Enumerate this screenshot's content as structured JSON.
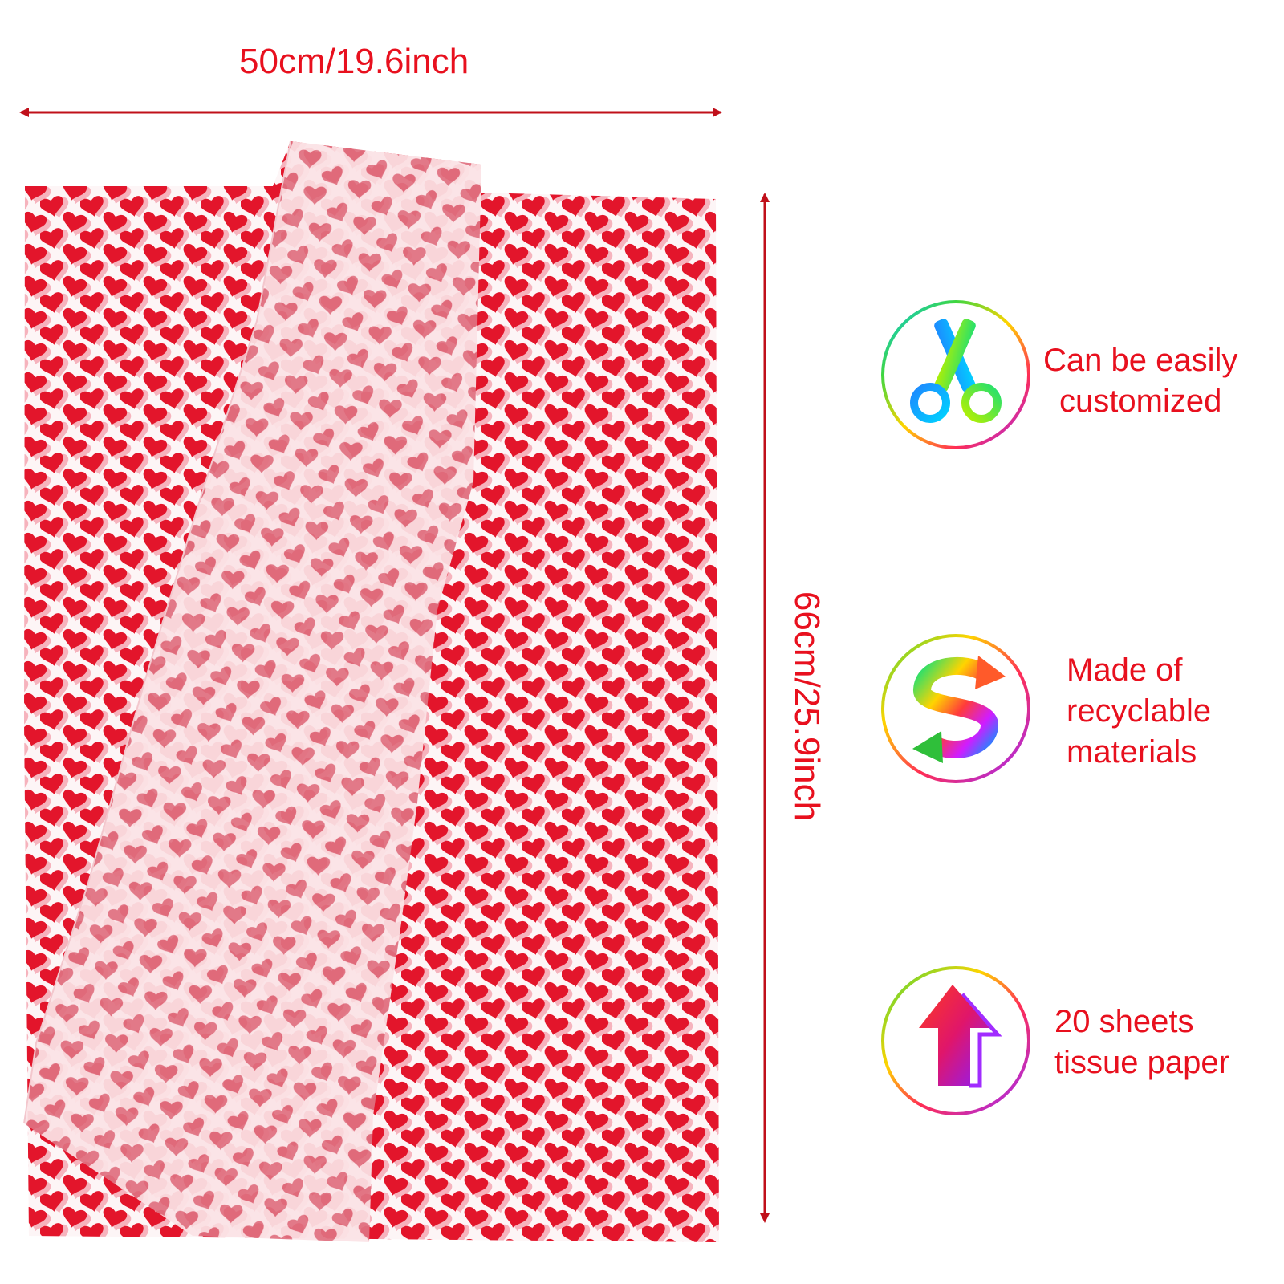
{
  "dimensions": {
    "width_label": "50cm/19.6inch",
    "height_label": "66cm/25.9inch"
  },
  "features": [
    {
      "icon": "scissors-icon",
      "lines": [
        "Can be easily",
        "customized"
      ]
    },
    {
      "icon": "recycle-arrows-icon",
      "lines": [
        "Made of",
        "recyclable",
        "materials"
      ]
    },
    {
      "icon": "up-arrow-icon",
      "lines": [
        "20 sheets",
        "tissue paper"
      ]
    }
  ],
  "colors": {
    "accent_red": "#e8101e",
    "heart_red": "#e3152b",
    "heart_shadow": "#f6b3bd",
    "paper": "#fdf5f6",
    "folded_heart": "#e07080"
  }
}
